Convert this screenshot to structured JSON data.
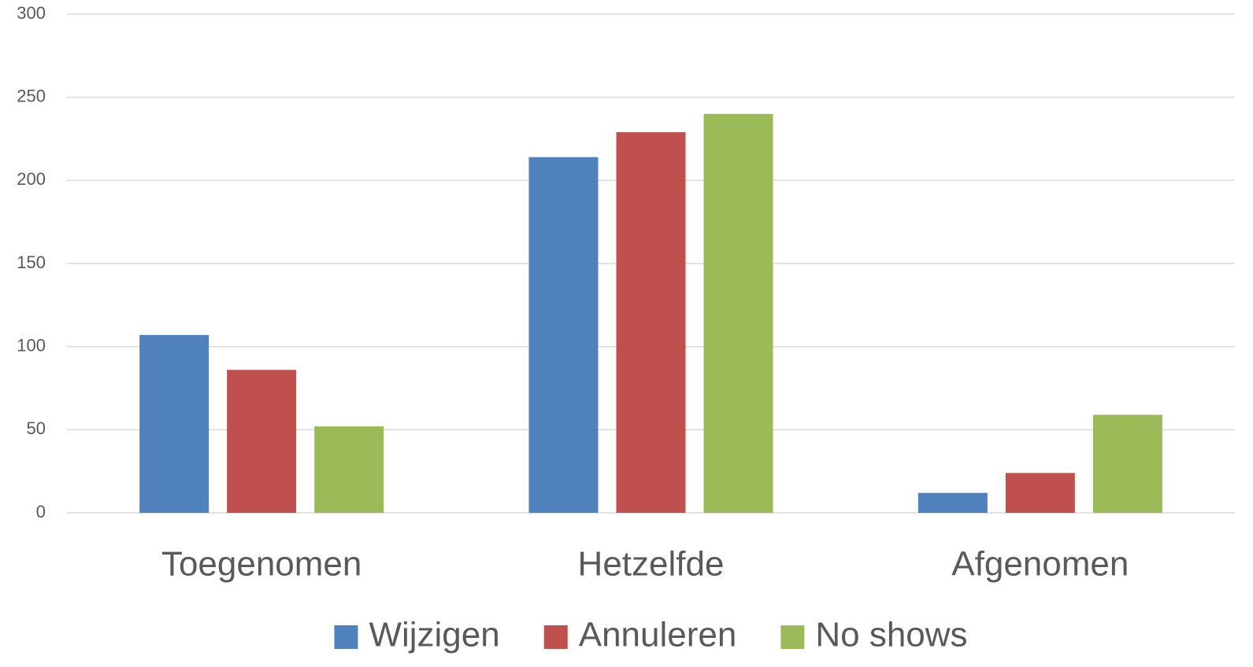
{
  "chart_data": {
    "type": "bar",
    "categories": [
      "Toegenomen",
      "Hetzelfde",
      "Afgenomen"
    ],
    "series": [
      {
        "name": "Wijzigen",
        "color": "#4f81bd",
        "values": [
          107,
          214,
          12
        ]
      },
      {
        "name": "Annuleren",
        "color": "#c0504d",
        "values": [
          86,
          229,
          24
        ]
      },
      {
        "name": "No shows",
        "color": "#9bbb59",
        "values": [
          52,
          240,
          59
        ]
      }
    ],
    "ylim": [
      0,
      300
    ],
    "yticks": [
      0,
      50,
      100,
      150,
      200,
      250,
      300
    ],
    "grid": true,
    "legend": "bottom"
  }
}
